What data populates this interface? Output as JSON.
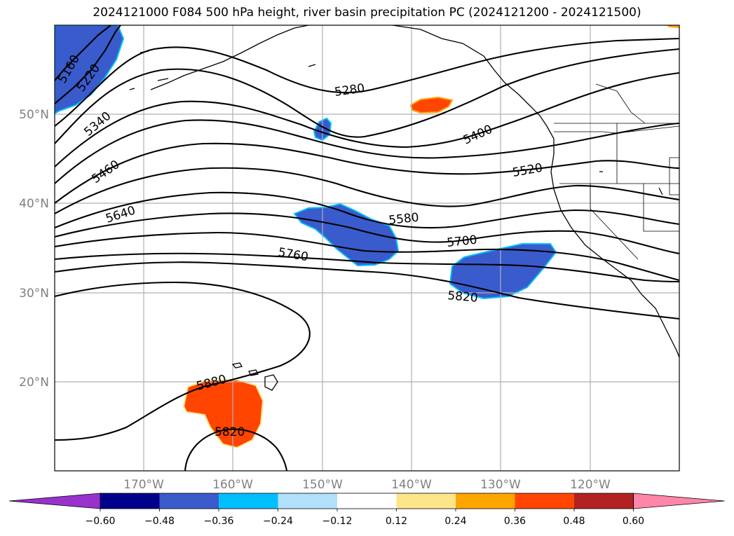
{
  "title": "2024121000 F084 500 hPa height, river basin precipitation PC (2024121200 - 2024121500)",
  "map": {
    "lon_range": [
      -180,
      -110
    ],
    "lat_range": [
      10,
      60
    ],
    "lat_labels": [
      "50°N",
      "40°N",
      "30°N",
      "20°N"
    ],
    "lon_labels": [
      "170°W",
      "160°W",
      "150°W",
      "140°W",
      "130°W",
      "120°W"
    ],
    "gridlines": true,
    "contour_labels": [
      "5160",
      "5220",
      "5280",
      "5340",
      "5400",
      "5460",
      "5520",
      "5580",
      "5640",
      "5700",
      "5760",
      "5820",
      "5820",
      "5880"
    ],
    "shaded_regions": [
      {
        "region": "northwest-corner",
        "class": "-0.36"
      },
      {
        "region": "near 152W 48N",
        "class": "-0.36"
      },
      {
        "region": "near 140W 51N",
        "class": "0.36"
      },
      {
        "region": "150W-140W 35-39N",
        "class": "-0.36"
      },
      {
        "region": "135W-123W 32-36N",
        "class": "-0.36"
      },
      {
        "region": "near 160W 17N",
        "class": "0.36"
      }
    ]
  },
  "colorbar": {
    "ticks": [
      "−0.60",
      "−0.48",
      "−0.36",
      "−0.24",
      "−0.12",
      "0.12",
      "0.24",
      "0.36",
      "0.48",
      "0.60"
    ],
    "colors": [
      "#9932cc",
      "#00008b",
      "#3a5bcc",
      "#00bfff",
      "#b0e0fa",
      "#ffffff",
      "#fde68a",
      "#ffa500",
      "#ff4500",
      "#b22222",
      "#ff86a8"
    ],
    "extend": "both"
  }
}
